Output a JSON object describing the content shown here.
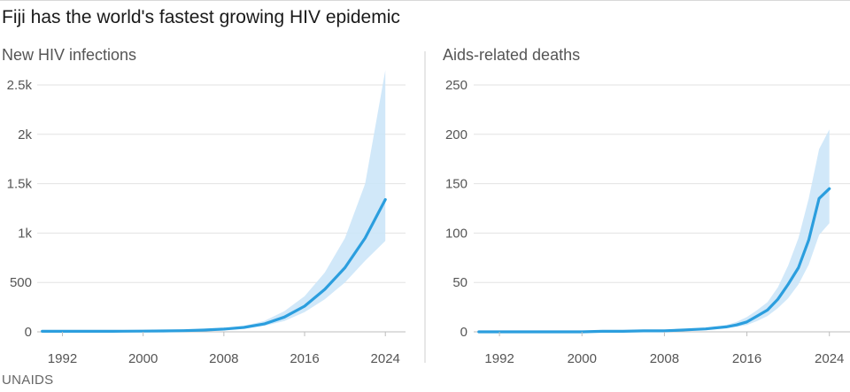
{
  "title": "Fiji has the world's fastest growing HIV epidemic",
  "source": "UNAIDS",
  "colors": {
    "line": "#2b9ede",
    "band": "#cce6f8"
  },
  "chart_data": [
    {
      "type": "area",
      "title": "New HIV infections",
      "x": [
        1990,
        1992,
        1994,
        1996,
        1998,
        2000,
        2002,
        2004,
        2006,
        2008,
        2010,
        2012,
        2014,
        2016,
        2018,
        2020,
        2022,
        2024
      ],
      "series": [
        {
          "values": [
            5,
            5,
            5,
            5,
            6,
            7,
            9,
            12,
            18,
            28,
            45,
            80,
            150,
            260,
            430,
            650,
            950,
            1340
          ]
        }
      ],
      "band": {
        "lower": [
          3,
          3,
          3,
          3,
          4,
          5,
          6,
          8,
          12,
          20,
          32,
          60,
          110,
          200,
          330,
          500,
          720,
          920
        ],
        "upper": [
          8,
          8,
          8,
          8,
          9,
          10,
          13,
          17,
          25,
          38,
          60,
          110,
          210,
          360,
          600,
          950,
          1500,
          2650
        ]
      },
      "xticks": [
        "1992",
        "2000",
        "2008",
        "2016",
        "2024"
      ],
      "xtick_values": [
        1992,
        2000,
        2008,
        2016,
        2024
      ],
      "yticks": [
        "0",
        "500",
        "1k",
        "1.5k",
        "2k",
        "2.5k"
      ],
      "ytick_values": [
        0,
        500,
        1000,
        1500,
        2000,
        2500
      ],
      "xlim": [
        1989.5,
        2026
      ],
      "ylim": [
        0,
        2500
      ],
      "grid": true
    },
    {
      "type": "area",
      "title": "Aids-related deaths",
      "x": [
        1990,
        1992,
        1994,
        1996,
        1998,
        2000,
        2002,
        2004,
        2006,
        2008,
        2010,
        2012,
        2013,
        2014,
        2015,
        2016,
        2017,
        2018,
        2019,
        2020,
        2021,
        2022,
        2023,
        2024
      ],
      "series": [
        {
          "values": [
            0,
            0,
            0,
            0,
            0,
            0,
            0.5,
            0.5,
            1,
            1,
            2,
            3,
            4,
            5,
            7,
            10,
            16,
            22,
            33,
            48,
            65,
            93,
            135,
            145
          ]
        }
      ],
      "band": {
        "lower": [
          0,
          0,
          0,
          0,
          0,
          0,
          0,
          0,
          0.5,
          0.5,
          1,
          2,
          3,
          4,
          5,
          7,
          11,
          16,
          24,
          34,
          48,
          68,
          98,
          110
        ],
        "upper": [
          0,
          0,
          0,
          0,
          0,
          0,
          1,
          1,
          2,
          2,
          3,
          4,
          5,
          7,
          10,
          15,
          22,
          30,
          45,
          67,
          95,
          135,
          185,
          205
        ]
      },
      "xticks": [
        "1992",
        "2000",
        "2008",
        "2016",
        "2024"
      ],
      "xtick_values": [
        1992,
        2000,
        2008,
        2016,
        2024
      ],
      "yticks": [
        "0",
        "50",
        "100",
        "150",
        "200",
        "250"
      ],
      "ytick_values": [
        0,
        50,
        100,
        150,
        200,
        250
      ],
      "xlim": [
        1989.5,
        2026
      ],
      "ylim": [
        0,
        250
      ],
      "grid": true
    }
  ]
}
